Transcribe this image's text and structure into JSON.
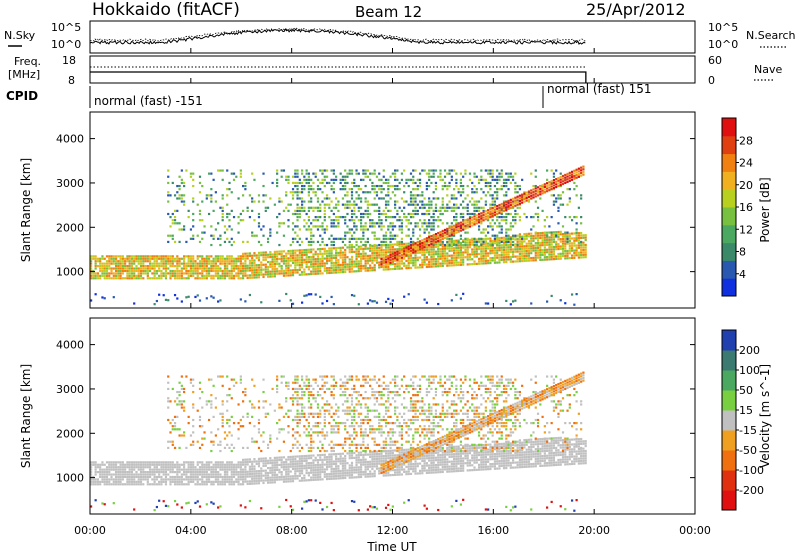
{
  "header": {
    "station": "Hokkaido (fitACF)",
    "beam": "Beam 12",
    "date": "25/Apr/2012"
  },
  "left_labels": {
    "nsky": "N.Sky",
    "freq_line1": "Freq.",
    "freq_line2": "[MHz]",
    "cpid": "CPID"
  },
  "right_labels": {
    "nsearch": "N.Search",
    "nave": "Nave"
  },
  "noise_panel": {
    "left_ticks": [
      "10^5",
      "10^0"
    ],
    "right_ticks": [
      "10^5",
      "10^0"
    ]
  },
  "freq_panel": {
    "left_ticks": [
      "18",
      "8"
    ],
    "right_ticks": [
      "60",
      "0"
    ]
  },
  "cpid_panel": {
    "segments": [
      {
        "label": "normal (fast) -151",
        "start_hour": 0,
        "end_hour": 18.0
      },
      {
        "label": "normal (fast) 151",
        "start_hour": 18.0,
        "end_hour": 19.67
      }
    ]
  },
  "chart_data": [
    {
      "type": "heatmap",
      "name": "power",
      "ylabel": "Slant Range [km]",
      "yticks": [
        1000,
        2000,
        3000,
        4000
      ],
      "ylim": [
        180,
        4600
      ],
      "xlim": [
        0,
        24
      ],
      "colorbar_label": "Power [dB]",
      "colorbar_ticks": [
        "4",
        "8",
        "12",
        "16",
        "20",
        "24",
        "28"
      ],
      "colorbar_colors": [
        "#1030e0",
        "#2858b0",
        "#3a8a6a",
        "#4aa860",
        "#78c040",
        "#b8d020",
        "#f0b020",
        "#f08010",
        "#e04010",
        "#e01010"
      ]
    },
    {
      "type": "heatmap",
      "name": "velocity",
      "ylabel": "Slant Range [km]",
      "yticks": [
        1000,
        2000,
        3000,
        4000
      ],
      "ylim": [
        180,
        4600
      ],
      "xlim": [
        0,
        24
      ],
      "xlabel": "Time UT",
      "xticks": [
        "00:00",
        "04:00",
        "08:00",
        "12:00",
        "16:00",
        "20:00",
        "00:00"
      ],
      "colorbar_label": "Velocity [m s^-1]",
      "colorbar_ticks": [
        "200",
        "100",
        "50",
        "15",
        "-15",
        "-50",
        "-100",
        "-200"
      ],
      "colorbar_colors": [
        "#2040b0",
        "#3a7a70",
        "#4aa860",
        "#78d040",
        "#c0c0c0",
        "#f0a020",
        "#f07010",
        "#e03010",
        "#e01010"
      ]
    }
  ]
}
